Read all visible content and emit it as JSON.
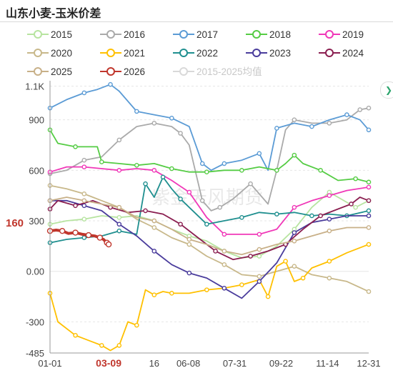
{
  "title": "山东小麦-玉米价差",
  "chart_data": {
    "type": "line",
    "title": "山东小麦-玉米价差",
    "xlabel": "",
    "ylabel": "",
    "ylim": [
      -485,
      1115
    ],
    "y_ticks": [
      "1.1K",
      "900",
      "600",
      "300",
      "0.00",
      "-300",
      "-485"
    ],
    "y_tick_values": [
      1100,
      900,
      600,
      300,
      0,
      -300,
      -485
    ],
    "x_ticks": [
      "01-01",
      "03-09",
      "16",
      "06-08",
      "07-31",
      "09-22",
      "11-14",
      "12-31"
    ],
    "x_tick_days": [
      1,
      68,
      120,
      159,
      212,
      265,
      318,
      365
    ],
    "current_value_label": "160",
    "current_date_label": "03-09",
    "grid": "horizontal",
    "legend_position": "top",
    "watermark": "紫金天风期货",
    "series": [
      {
        "name": "2015",
        "color": "#b7e4a0",
        "points": [
          [
            1,
            280
          ],
          [
            20,
            300
          ],
          [
            40,
            310
          ],
          [
            60,
            330
          ],
          [
            80,
            320
          ],
          [
            100,
            330
          ],
          [
            120,
            300
          ],
          [
            140,
            250
          ],
          [
            160,
            210
          ],
          [
            180,
            180
          ],
          [
            200,
            120
          ],
          [
            220,
            80
          ],
          [
            240,
            90
          ],
          [
            260,
            150
          ],
          [
            280,
            250
          ],
          [
            300,
            380
          ],
          [
            320,
            470
          ],
          [
            340,
            410
          ],
          [
            350,
            380
          ],
          [
            365,
            420
          ]
        ]
      },
      {
        "name": "2016",
        "color": "#aaaaaa",
        "points": [
          [
            1,
            580
          ],
          [
            20,
            600
          ],
          [
            40,
            660
          ],
          [
            60,
            680
          ],
          [
            80,
            780
          ],
          [
            100,
            860
          ],
          [
            120,
            880
          ],
          [
            140,
            860
          ],
          [
            150,
            820
          ],
          [
            160,
            750
          ],
          [
            175,
            420
          ],
          [
            185,
            360
          ],
          [
            195,
            380
          ],
          [
            210,
            430
          ],
          [
            230,
            520
          ],
          [
            250,
            400
          ],
          [
            260,
            600
          ],
          [
            270,
            840
          ],
          [
            280,
            900
          ],
          [
            300,
            880
          ],
          [
            320,
            880
          ],
          [
            340,
            900
          ],
          [
            355,
            960
          ],
          [
            365,
            970
          ]
        ]
      },
      {
        "name": "2017",
        "color": "#5b9bd5",
        "points": [
          [
            1,
            970
          ],
          [
            20,
            1020
          ],
          [
            40,
            1060
          ],
          [
            55,
            1080
          ],
          [
            70,
            1110
          ],
          [
            80,
            1070
          ],
          [
            100,
            950
          ],
          [
            120,
            930
          ],
          [
            140,
            910
          ],
          [
            160,
            860
          ],
          [
            175,
            640
          ],
          [
            185,
            600
          ],
          [
            200,
            640
          ],
          [
            220,
            660
          ],
          [
            240,
            700
          ],
          [
            250,
            600
          ],
          [
            260,
            850
          ],
          [
            280,
            880
          ],
          [
            300,
            860
          ],
          [
            320,
            900
          ],
          [
            340,
            930
          ],
          [
            355,
            900
          ],
          [
            365,
            840
          ]
        ]
      },
      {
        "name": "2018",
        "color": "#55cc44",
        "points": [
          [
            1,
            840
          ],
          [
            10,
            760
          ],
          [
            30,
            740
          ],
          [
            55,
            740
          ],
          [
            60,
            650
          ],
          [
            80,
            640
          ],
          [
            100,
            630
          ],
          [
            120,
            640
          ],
          [
            140,
            610
          ],
          [
            160,
            590
          ],
          [
            180,
            590
          ],
          [
            200,
            600
          ],
          [
            220,
            600
          ],
          [
            240,
            620
          ],
          [
            260,
            600
          ],
          [
            270,
            640
          ],
          [
            280,
            690
          ],
          [
            290,
            640
          ],
          [
            310,
            600
          ],
          [
            330,
            540
          ],
          [
            350,
            550
          ],
          [
            365,
            530
          ]
        ]
      },
      {
        "name": "2019",
        "color": "#f038b8",
        "points": [
          [
            1,
            590
          ],
          [
            20,
            620
          ],
          [
            40,
            620
          ],
          [
            60,
            610
          ],
          [
            80,
            600
          ],
          [
            100,
            610
          ],
          [
            120,
            600
          ],
          [
            140,
            540
          ],
          [
            160,
            470
          ],
          [
            180,
            320
          ],
          [
            200,
            220
          ],
          [
            220,
            220
          ],
          [
            240,
            220
          ],
          [
            260,
            250
          ],
          [
            280,
            380
          ],
          [
            300,
            420
          ],
          [
            320,
            450
          ],
          [
            340,
            480
          ],
          [
            365,
            500
          ]
        ]
      },
      {
        "name": "2020",
        "color": "#c8b88a",
        "points": [
          [
            1,
            510
          ],
          [
            20,
            490
          ],
          [
            40,
            460
          ],
          [
            60,
            420
          ],
          [
            80,
            380
          ],
          [
            100,
            310
          ],
          [
            120,
            260
          ],
          [
            140,
            200
          ],
          [
            160,
            160
          ],
          [
            180,
            90
          ],
          [
            200,
            40
          ],
          [
            220,
            -20
          ],
          [
            240,
            -30
          ],
          [
            260,
            0
          ],
          [
            280,
            30
          ],
          [
            300,
            -20
          ],
          [
            320,
            -40
          ],
          [
            340,
            -60
          ],
          [
            365,
            -120
          ]
        ]
      },
      {
        "name": "2021",
        "color": "#ffc000",
        "points": [
          [
            1,
            -130
          ],
          [
            10,
            -300
          ],
          [
            30,
            -380
          ],
          [
            50,
            -420
          ],
          [
            60,
            -440
          ],
          [
            70,
            -470
          ],
          [
            80,
            -440
          ],
          [
            90,
            -300
          ],
          [
            100,
            -320
          ],
          [
            110,
            -110
          ],
          [
            120,
            -140
          ],
          [
            130,
            -120
          ],
          [
            140,
            -130
          ],
          [
            160,
            -130
          ],
          [
            180,
            -110
          ],
          [
            200,
            -100
          ],
          [
            220,
            -80
          ],
          [
            240,
            -50
          ],
          [
            250,
            -150
          ],
          [
            260,
            30
          ],
          [
            270,
            60
          ],
          [
            280,
            -60
          ],
          [
            290,
            -40
          ],
          [
            300,
            20
          ],
          [
            320,
            60
          ],
          [
            340,
            110
          ],
          [
            365,
            160
          ]
        ]
      },
      {
        "name": "2022",
        "color": "#1f8f8f",
        "points": [
          [
            1,
            170
          ],
          [
            20,
            190
          ],
          [
            40,
            200
          ],
          [
            60,
            210
          ],
          [
            80,
            240
          ],
          [
            100,
            220
          ],
          [
            110,
            520
          ],
          [
            120,
            440
          ],
          [
            130,
            560
          ],
          [
            140,
            490
          ],
          [
            150,
            430
          ],
          [
            160,
            380
          ],
          [
            180,
            280
          ],
          [
            200,
            300
          ],
          [
            220,
            320
          ],
          [
            240,
            350
          ],
          [
            260,
            340
          ],
          [
            280,
            350
          ],
          [
            300,
            330
          ],
          [
            320,
            340
          ],
          [
            340,
            330
          ],
          [
            365,
            360
          ]
        ]
      },
      {
        "name": "2023",
        "color": "#4a3c9c",
        "points": [
          [
            1,
            420
          ],
          [
            20,
            420
          ],
          [
            40,
            390
          ],
          [
            60,
            360
          ],
          [
            80,
            280
          ],
          [
            100,
            210
          ],
          [
            120,
            120
          ],
          [
            140,
            40
          ],
          [
            160,
            -10
          ],
          [
            180,
            -40
          ],
          [
            200,
            -100
          ],
          [
            220,
            -160
          ],
          [
            240,
            -60
          ],
          [
            260,
            50
          ],
          [
            280,
            230
          ],
          [
            300,
            290
          ],
          [
            320,
            310
          ],
          [
            340,
            330
          ],
          [
            365,
            330
          ]
        ]
      },
      {
        "name": "2024",
        "color": "#8a1e50",
        "points": [
          [
            1,
            370
          ],
          [
            10,
            420
          ],
          [
            30,
            390
          ],
          [
            50,
            420
          ],
          [
            70,
            380
          ],
          [
            90,
            350
          ],
          [
            110,
            360
          ],
          [
            130,
            340
          ],
          [
            150,
            280
          ],
          [
            170,
            200
          ],
          [
            190,
            120
          ],
          [
            210,
            70
          ],
          [
            230,
            90
          ],
          [
            250,
            120
          ],
          [
            270,
            160
          ],
          [
            290,
            250
          ],
          [
            310,
            330
          ],
          [
            330,
            370
          ],
          [
            345,
            400
          ],
          [
            355,
            440
          ],
          [
            365,
            420
          ]
        ]
      },
      {
        "name": "2025",
        "color": "#c8b088",
        "points": [
          [
            1,
            420
          ],
          [
            20,
            440
          ],
          [
            40,
            420
          ],
          [
            60,
            400
          ],
          [
            80,
            380
          ],
          [
            100,
            320
          ],
          [
            120,
            300
          ],
          [
            140,
            250
          ],
          [
            160,
            190
          ],
          [
            180,
            160
          ],
          [
            200,
            120
          ],
          [
            220,
            100
          ],
          [
            240,
            130
          ],
          [
            260,
            160
          ],
          [
            280,
            180
          ],
          [
            300,
            210
          ],
          [
            320,
            240
          ],
          [
            340,
            260
          ],
          [
            365,
            260
          ]
        ]
      },
      {
        "name": "2026",
        "color": "#c0362c",
        "points": [
          [
            1,
            240
          ],
          [
            8,
            245
          ],
          [
            15,
            240
          ],
          [
            22,
            225
          ],
          [
            30,
            230
          ],
          [
            38,
            220
          ],
          [
            45,
            215
          ],
          [
            52,
            210
          ],
          [
            58,
            200
          ],
          [
            62,
            190
          ],
          [
            66,
            170
          ],
          [
            68,
            160
          ]
        ]
      },
      {
        "name": "2015-2025均值",
        "color": "#d9d9d9",
        "points": []
      }
    ]
  }
}
